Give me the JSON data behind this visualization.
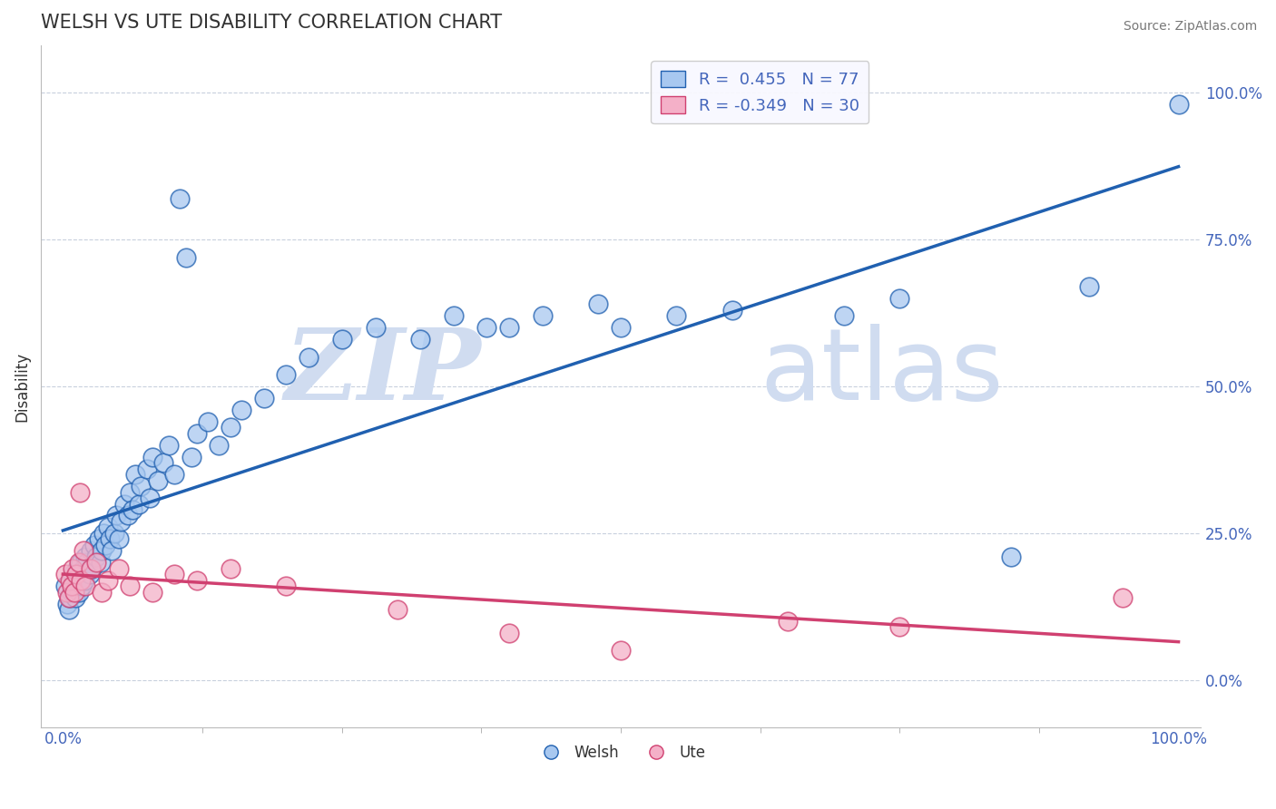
{
  "title": "WELSH VS UTE DISABILITY CORRELATION CHART",
  "source": "Source: ZipAtlas.com",
  "ylabel": "Disability",
  "welsh_R": 0.455,
  "welsh_N": 77,
  "ute_R": -0.349,
  "ute_N": 30,
  "welsh_color": "#A8C8F0",
  "ute_color": "#F4B0C8",
  "welsh_line_color": "#2060B0",
  "ute_line_color": "#D04070",
  "legend_label_welsh": "Welsh",
  "legend_label_ute": "Ute",
  "watermark_zip": "ZIP",
  "watermark_atlas": "atlas",
  "watermark_color": "#D0DCF0",
  "background_color": "#FFFFFF",
  "title_color": "#333333",
  "tick_label_color": "#4466BB",
  "grid_color": "#C8D0DD",
  "xlim": [
    -0.02,
    1.02
  ],
  "ylim": [
    -0.08,
    1.08
  ],
  "xtick_labels_positions": [
    0.0,
    1.0
  ],
  "xtick_labels": [
    "0.0%",
    "100.0%"
  ],
  "ytick_positions": [
    0.0,
    0.25,
    0.5,
    0.75,
    1.0
  ],
  "ytick_labels": [
    "0.0%",
    "25.0%",
    "50.0%",
    "75.0%",
    "100.0%"
  ],
  "welsh_x": [
    0.002,
    0.004,
    0.005,
    0.006,
    0.007,
    0.008,
    0.009,
    0.01,
    0.011,
    0.012,
    0.013,
    0.014,
    0.015,
    0.016,
    0.017,
    0.018,
    0.019,
    0.02,
    0.022,
    0.024,
    0.025,
    0.026,
    0.028,
    0.03,
    0.032,
    0.034,
    0.035,
    0.036,
    0.038,
    0.04,
    0.042,
    0.044,
    0.046,
    0.048,
    0.05,
    0.052,
    0.055,
    0.058,
    0.06,
    0.062,
    0.065,
    0.068,
    0.07,
    0.075,
    0.078,
    0.08,
    0.085,
    0.09,
    0.095,
    0.1,
    0.105,
    0.11,
    0.115,
    0.12,
    0.13,
    0.14,
    0.15,
    0.16,
    0.18,
    0.2,
    0.22,
    0.25,
    0.28,
    0.32,
    0.35,
    0.38,
    0.4,
    0.43,
    0.48,
    0.5,
    0.55,
    0.6,
    0.7,
    0.75,
    0.85,
    0.92,
    1.0
  ],
  "welsh_y": [
    0.16,
    0.13,
    0.12,
    0.14,
    0.17,
    0.15,
    0.18,
    0.16,
    0.14,
    0.17,
    0.19,
    0.15,
    0.18,
    0.2,
    0.16,
    0.19,
    0.17,
    0.21,
    0.2,
    0.18,
    0.22,
    0.19,
    0.23,
    0.21,
    0.24,
    0.2,
    0.22,
    0.25,
    0.23,
    0.26,
    0.24,
    0.22,
    0.25,
    0.28,
    0.24,
    0.27,
    0.3,
    0.28,
    0.32,
    0.29,
    0.35,
    0.3,
    0.33,
    0.36,
    0.31,
    0.38,
    0.34,
    0.37,
    0.4,
    0.35,
    0.82,
    0.72,
    0.38,
    0.42,
    0.44,
    0.4,
    0.43,
    0.46,
    0.48,
    0.52,
    0.55,
    0.58,
    0.6,
    0.58,
    0.62,
    0.6,
    0.6,
    0.62,
    0.64,
    0.6,
    0.62,
    0.63,
    0.62,
    0.65,
    0.21,
    0.67,
    0.98
  ],
  "ute_x": [
    0.002,
    0.004,
    0.005,
    0.006,
    0.008,
    0.009,
    0.01,
    0.012,
    0.014,
    0.015,
    0.016,
    0.018,
    0.02,
    0.025,
    0.03,
    0.035,
    0.04,
    0.05,
    0.06,
    0.08,
    0.1,
    0.12,
    0.15,
    0.2,
    0.3,
    0.4,
    0.5,
    0.65,
    0.75,
    0.95
  ],
  "ute_y": [
    0.18,
    0.15,
    0.14,
    0.17,
    0.16,
    0.19,
    0.15,
    0.18,
    0.2,
    0.32,
    0.17,
    0.22,
    0.16,
    0.19,
    0.2,
    0.15,
    0.17,
    0.19,
    0.16,
    0.15,
    0.18,
    0.17,
    0.19,
    0.16,
    0.12,
    0.08,
    0.05,
    0.1,
    0.09,
    0.14
  ]
}
